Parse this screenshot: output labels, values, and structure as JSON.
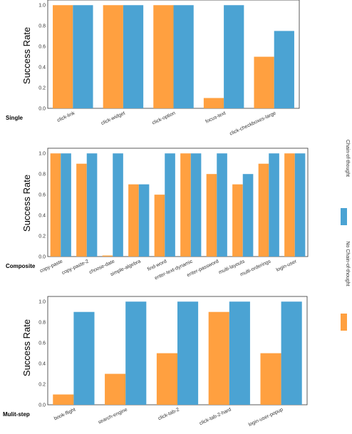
{
  "colors": {
    "no_cot": "#FFA040",
    "cot": "#4BA3D3",
    "axis": "#333333"
  },
  "legend": {
    "cot_label": "Chain-of-thought",
    "no_cot_label": "No Chain-of-thought"
  },
  "chart_data": [
    {
      "type": "bar",
      "title": "Single",
      "ylabel": "Success Rate",
      "xlabel": "",
      "ylim": [
        0,
        1.05
      ],
      "yticks": [
        "0.0",
        "0.2",
        "0.4",
        "0.6",
        "0.8",
        "1.0"
      ],
      "categories": [
        "click-link",
        "click-widget",
        "click-option",
        "focus-text",
        "click-checkboxes-large"
      ],
      "series": [
        {
          "name": "No Chain-of-thought",
          "values": [
            1.0,
            1.0,
            1.0,
            0.1,
            0.5
          ]
        },
        {
          "name": "Chain-of-thought",
          "values": [
            1.0,
            1.0,
            1.0,
            1.0,
            0.75
          ]
        }
      ]
    },
    {
      "type": "bar",
      "title": "Composite",
      "ylabel": "Success Rate",
      "xlabel": "",
      "ylim": [
        0,
        1.05
      ],
      "yticks": [
        "0.0",
        "0.2",
        "0.4",
        "0.6",
        "0.8",
        "1.0"
      ],
      "categories": [
        "copy-paste",
        "copy-paste-2",
        "choose-date",
        "simple-algebra",
        "find-word",
        "enter-text-dynamic",
        "enter-password",
        "multi-layouts",
        "multi-orderings",
        "login-user"
      ],
      "series": [
        {
          "name": "No Chain-of-thought",
          "values": [
            1.0,
            0.9,
            0.01,
            0.7,
            0.6,
            1.0,
            0.8,
            0.7,
            0.9,
            1.0
          ]
        },
        {
          "name": "Chain-of-thought",
          "values": [
            1.0,
            1.0,
            1.0,
            0.7,
            1.0,
            1.0,
            1.0,
            0.8,
            1.0,
            1.0
          ]
        }
      ]
    },
    {
      "type": "bar",
      "title": "Mulit-step",
      "ylabel": "Success Rate",
      "xlabel": "",
      "ylim": [
        0,
        1.05
      ],
      "yticks": [
        "0.0",
        "0.2",
        "0.4",
        "0.6",
        "0.8",
        "1.0"
      ],
      "categories": [
        "book-flight",
        "search-engine",
        "click-tab-2",
        "click-tab-2-hard",
        "login-user-popup"
      ],
      "series": [
        {
          "name": "No Chain-of-thought",
          "values": [
            0.1,
            0.3,
            0.5,
            0.9,
            0.5
          ]
        },
        {
          "name": "Chain-of-thought",
          "values": [
            0.9,
            1.0,
            1.0,
            1.0,
            1.0
          ]
        }
      ]
    }
  ]
}
